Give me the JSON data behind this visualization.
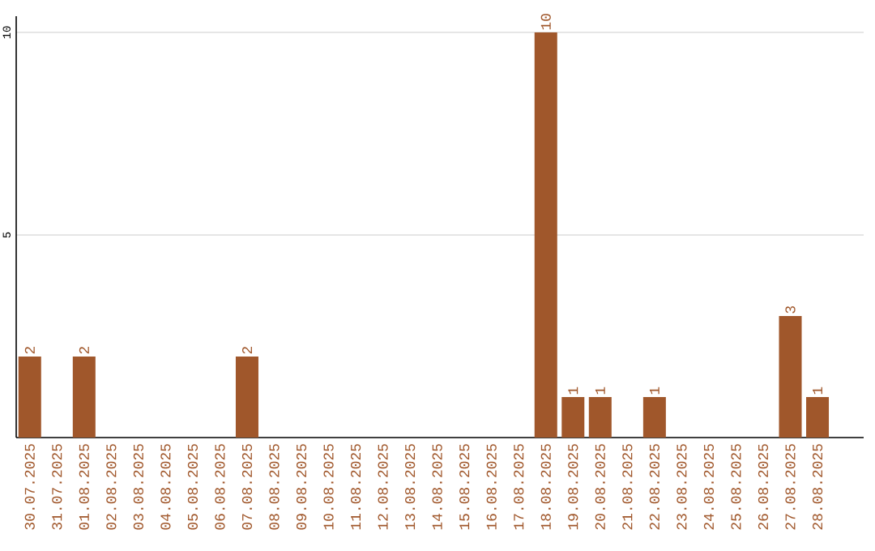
{
  "chart_data": {
    "type": "bar",
    "categories": [
      "30.07.2025",
      "31.07.2025",
      "01.08.2025",
      "02.08.2025",
      "03.08.2025",
      "04.08.2025",
      "05.08.2025",
      "06.08.2025",
      "07.08.2025",
      "08.08.2025",
      "09.08.2025",
      "10.08.2025",
      "11.08.2025",
      "12.08.2025",
      "13.08.2025",
      "14.08.2025",
      "15.08.2025",
      "16.08.2025",
      "17.08.2025",
      "18.08.2025",
      "19.08.2025",
      "20.08.2025",
      "21.08.2025",
      "22.08.2025",
      "23.08.2025",
      "24.08.2025",
      "25.08.2025",
      "26.08.2025",
      "27.08.2025",
      "28.08.2025"
    ],
    "values": [
      2,
      0,
      2,
      0,
      0,
      0,
      0,
      0,
      2,
      0,
      0,
      0,
      0,
      0,
      0,
      0,
      0,
      0,
      0,
      10,
      1,
      1,
      0,
      1,
      0,
      0,
      0,
      0,
      3,
      1
    ],
    "value_labels": [
      "2",
      null,
      "2",
      null,
      null,
      null,
      null,
      null,
      "2",
      null,
      null,
      null,
      null,
      null,
      null,
      null,
      null,
      null,
      null,
      "10",
      "1",
      "1",
      null,
      "1",
      null,
      null,
      null,
      null,
      "3",
      "1"
    ],
    "color": "#a0572b",
    "ylim": [
      0,
      10.4
    ],
    "yticks": [
      5,
      10
    ],
    "grid": "y"
  }
}
